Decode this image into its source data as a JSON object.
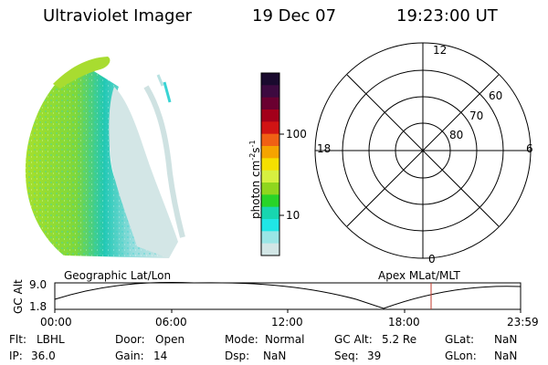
{
  "header": {
    "instrument": "Ultraviolet Imager",
    "date": "19 Dec 07",
    "time": "19:23:00 UT"
  },
  "colorbar": {
    "label": "photon cm",
    "label_exp1": "-2",
    "label_mid": "s",
    "label_exp2": "-1",
    "ticks": [
      "100",
      "10"
    ],
    "colors": [
      "#1a0a2e",
      "#3d0a40",
      "#6a0030",
      "#a3001a",
      "#d11414",
      "#f06014",
      "#f5a400",
      "#f5e000",
      "#d6f040",
      "#8fd61e",
      "#28d428",
      "#18d6b0",
      "#20e6e6",
      "#9ae6e6",
      "#d2e6e6"
    ]
  },
  "polar_plot": {
    "labels": [
      "12",
      "60",
      "70",
      "80",
      "18",
      "6",
      "0"
    ]
  },
  "orbit_plot": {
    "ylabel": "GC Alt",
    "ytick_top": "9.0",
    "ytick_bottom": "1.8",
    "left_title": "Geographic Lat/Lon",
    "right_title": "Apex MLat/MLT",
    "xticks": [
      "00:00",
      "06:00",
      "12:00",
      "18:00",
      "23:59"
    ],
    "marker_time": "19:23"
  },
  "footer": {
    "flt_label": "Flt:",
    "flt_value": "LBHL",
    "ip_label": "IP:",
    "ip_value": "36.0",
    "door_label": "Door:",
    "door_value": "Open",
    "gain_label": "Gain:",
    "gain_value": "14",
    "mode_label": "Mode:",
    "mode_value": "Normal",
    "dsp_label": "Dsp:",
    "dsp_value": "NaN",
    "gcalt_label": "GC Alt:",
    "gcalt_value": "5.2 Re",
    "seq_label": "Seq:",
    "seq_value": "39",
    "glat_label": "GLat:",
    "glat_value": "NaN",
    "glon_label": "GLon:",
    "glon_value": "NaN"
  }
}
